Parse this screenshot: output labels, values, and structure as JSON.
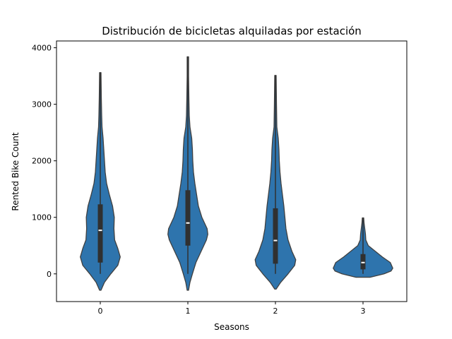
{
  "chart_data": {
    "type": "violin",
    "title": "Distribución de bicicletas alquiladas por estación",
    "xlabel": "Seasons",
    "ylabel": "Rented Bike Count",
    "categories": [
      "0",
      "1",
      "2",
      "3"
    ],
    "ylim": [
      -490,
      4120
    ],
    "yticks": [
      0,
      1000,
      2000,
      3000,
      4000
    ],
    "ytick_labels": [
      "0",
      "1000",
      "2000",
      "3000",
      "4000"
    ],
    "grid": false,
    "colors": {
      "fill": "#2e74ad",
      "stroke": "#404040",
      "box": "#303030",
      "median": "#ffffff",
      "axis": "#000000"
    },
    "violins": [
      {
        "category": "0",
        "min": 0,
        "max": 3560,
        "q1": 200,
        "median": 770,
        "q3": 1230,
        "profile": [
          [
            -290,
            0.02
          ],
          [
            -150,
            0.12
          ],
          [
            0,
            0.3
          ],
          [
            150,
            0.5
          ],
          [
            300,
            0.57
          ],
          [
            450,
            0.5
          ],
          [
            600,
            0.41
          ],
          [
            800,
            0.39
          ],
          [
            1000,
            0.4
          ],
          [
            1200,
            0.35
          ],
          [
            1400,
            0.26
          ],
          [
            1600,
            0.18
          ],
          [
            1800,
            0.14
          ],
          [
            2000,
            0.12
          ],
          [
            2200,
            0.1
          ],
          [
            2400,
            0.08
          ],
          [
            2600,
            0.05
          ],
          [
            2800,
            0.04
          ],
          [
            3100,
            0.03
          ],
          [
            3560,
            0.02
          ]
        ]
      },
      {
        "category": "1",
        "min": 0,
        "max": 3840,
        "q1": 500,
        "median": 900,
        "q3": 1480,
        "profile": [
          [
            -290,
            0.02
          ],
          [
            -150,
            0.06
          ],
          [
            0,
            0.13
          ],
          [
            200,
            0.23
          ],
          [
            400,
            0.38
          ],
          [
            600,
            0.53
          ],
          [
            700,
            0.57
          ],
          [
            800,
            0.55
          ],
          [
            1000,
            0.4
          ],
          [
            1200,
            0.3
          ],
          [
            1400,
            0.25
          ],
          [
            1600,
            0.2
          ],
          [
            1800,
            0.16
          ],
          [
            2000,
            0.14
          ],
          [
            2200,
            0.13
          ],
          [
            2400,
            0.11
          ],
          [
            2600,
            0.06
          ],
          [
            2800,
            0.04
          ],
          [
            3100,
            0.03
          ],
          [
            3500,
            0.02
          ],
          [
            3840,
            0.02
          ]
        ]
      },
      {
        "category": "2",
        "min": 0,
        "max": 3510,
        "q1": 180,
        "median": 590,
        "q3": 1160,
        "profile": [
          [
            -270,
            0.02
          ],
          [
            -150,
            0.15
          ],
          [
            0,
            0.36
          ],
          [
            150,
            0.55
          ],
          [
            250,
            0.58
          ],
          [
            400,
            0.47
          ],
          [
            600,
            0.36
          ],
          [
            800,
            0.3
          ],
          [
            1000,
            0.27
          ],
          [
            1200,
            0.24
          ],
          [
            1400,
            0.2
          ],
          [
            1600,
            0.16
          ],
          [
            1800,
            0.13
          ],
          [
            2000,
            0.11
          ],
          [
            2200,
            0.1
          ],
          [
            2400,
            0.08
          ],
          [
            2600,
            0.04
          ],
          [
            3000,
            0.03
          ],
          [
            3510,
            0.02
          ]
        ]
      },
      {
        "category": "3",
        "min": 0,
        "max": 990,
        "q1": 80,
        "median": 200,
        "q3": 350,
        "profile": [
          [
            -60,
            0.2
          ],
          [
            0,
            0.6
          ],
          [
            50,
            0.8
          ],
          [
            100,
            0.85
          ],
          [
            200,
            0.78
          ],
          [
            300,
            0.55
          ],
          [
            400,
            0.35
          ],
          [
            500,
            0.15
          ],
          [
            600,
            0.08
          ],
          [
            700,
            0.07
          ],
          [
            800,
            0.05
          ],
          [
            900,
            0.03
          ],
          [
            990,
            0.02
          ]
        ]
      }
    ]
  }
}
